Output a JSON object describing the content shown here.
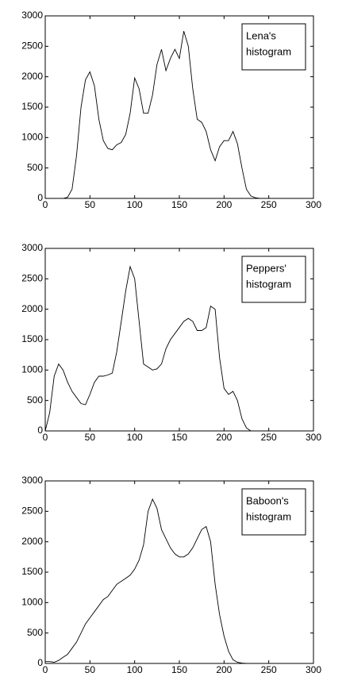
{
  "chart_data": [
    {
      "type": "line",
      "annotation": [
        "Lena's",
        "histogram"
      ],
      "color": "#000000",
      "x": [
        0,
        5,
        10,
        15,
        20,
        25,
        30,
        35,
        40,
        45,
        50,
        55,
        60,
        65,
        70,
        75,
        80,
        85,
        90,
        95,
        100,
        105,
        110,
        115,
        120,
        125,
        130,
        135,
        140,
        145,
        150,
        155,
        160,
        165,
        170,
        175,
        180,
        185,
        190,
        195,
        200,
        205,
        210,
        215,
        220,
        225,
        230,
        235,
        240,
        245,
        250,
        255
      ],
      "values": [
        0,
        0,
        0,
        0,
        0,
        20,
        150,
        700,
        1500,
        1950,
        2080,
        1850,
        1300,
        950,
        820,
        800,
        880,
        920,
        1050,
        1400,
        1980,
        1800,
        1400,
        1400,
        1700,
        2200,
        2450,
        2100,
        2300,
        2450,
        2300,
        2750,
        2500,
        1800,
        1300,
        1250,
        1100,
        800,
        620,
        850,
        950,
        950,
        1100,
        900,
        500,
        150,
        40,
        10,
        0,
        0,
        0,
        0
      ],
      "xlim": [
        0,
        300
      ],
      "ylim": [
        0,
        3000
      ],
      "xticks": [
        0,
        50,
        100,
        150,
        200,
        250,
        300
      ],
      "yticks": [
        0,
        500,
        1000,
        1500,
        2000,
        2500,
        3000
      ]
    },
    {
      "type": "line",
      "annotation": [
        "Peppers'",
        "histogram"
      ],
      "color": "#000000",
      "x": [
        0,
        5,
        10,
        15,
        20,
        25,
        30,
        35,
        40,
        45,
        50,
        55,
        60,
        65,
        70,
        75,
        80,
        85,
        90,
        95,
        100,
        105,
        110,
        115,
        120,
        125,
        130,
        135,
        140,
        145,
        150,
        155,
        160,
        165,
        170,
        175,
        180,
        185,
        190,
        195,
        200,
        205,
        210,
        215,
        220,
        225,
        230,
        235,
        240,
        245,
        250,
        255
      ],
      "values": [
        0,
        300,
        900,
        1100,
        1000,
        800,
        650,
        550,
        450,
        430,
        600,
        800,
        900,
        900,
        920,
        950,
        1300,
        1800,
        2300,
        2700,
        2500,
        1800,
        1100,
        1050,
        1000,
        1020,
        1100,
        1350,
        1500,
        1600,
        1700,
        1800,
        1850,
        1800,
        1650,
        1650,
        1700,
        2050,
        2000,
        1200,
        700,
        600,
        650,
        500,
        200,
        50,
        0,
        0,
        0,
        0,
        0,
        0
      ],
      "xlim": [
        0,
        300
      ],
      "ylim": [
        0,
        3000
      ],
      "xticks": [
        0,
        50,
        100,
        150,
        200,
        250,
        300
      ],
      "yticks": [
        0,
        500,
        1000,
        1500,
        2000,
        2500,
        3000
      ]
    },
    {
      "type": "line",
      "annotation": [
        "Baboon's",
        "histogram"
      ],
      "color": "#000000",
      "x": [
        0,
        5,
        10,
        15,
        20,
        25,
        30,
        35,
        40,
        45,
        50,
        55,
        60,
        65,
        70,
        75,
        80,
        85,
        90,
        95,
        100,
        105,
        110,
        115,
        120,
        125,
        130,
        135,
        140,
        145,
        150,
        155,
        160,
        165,
        170,
        175,
        180,
        185,
        190,
        195,
        200,
        205,
        210,
        215,
        220,
        225,
        230,
        235,
        240,
        245,
        250,
        255
      ],
      "values": [
        30,
        30,
        20,
        50,
        100,
        150,
        250,
        350,
        500,
        650,
        750,
        850,
        950,
        1050,
        1100,
        1200,
        1300,
        1350,
        1400,
        1450,
        1550,
        1700,
        1950,
        2500,
        2700,
        2550,
        2200,
        2050,
        1900,
        1800,
        1750,
        1750,
        1800,
        1900,
        2050,
        2200,
        2250,
        2000,
        1300,
        800,
        450,
        200,
        60,
        20,
        5,
        0,
        0,
        0,
        0,
        0,
        0,
        0
      ],
      "xlim": [
        0,
        300
      ],
      "ylim": [
        0,
        3000
      ],
      "xticks": [
        0,
        50,
        100,
        150,
        200,
        250,
        300
      ],
      "yticks": [
        0,
        500,
        1000,
        1500,
        2000,
        2500,
        3000
      ]
    }
  ]
}
